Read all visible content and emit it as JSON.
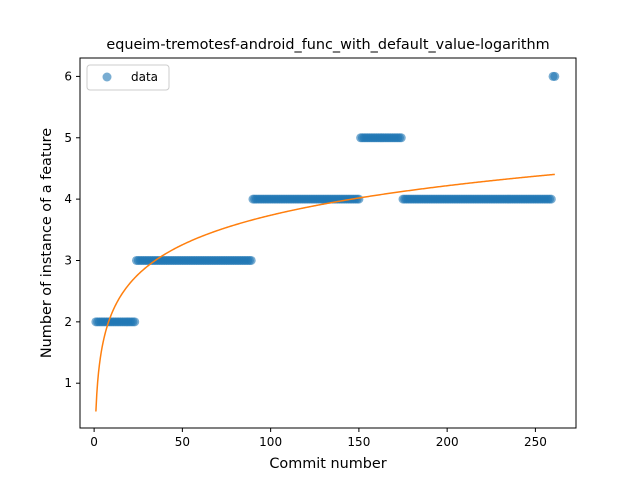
{
  "chart_data": {
    "type": "scatter",
    "title": "equeim-tremotesf-android_func_with_default_value-logarithm",
    "xlabel": "Commit number",
    "ylabel": "Number of instance of a feature",
    "xlim": [
      -8,
      273
    ],
    "ylim": [
      0.27,
      6.3
    ],
    "xticks": [
      0,
      50,
      100,
      150,
      200,
      250
    ],
    "yticks": [
      1,
      2,
      3,
      4,
      5,
      6
    ],
    "legend": {
      "position": "top-left",
      "entries": [
        "data"
      ]
    },
    "grid": false,
    "series": [
      {
        "name": "data",
        "kind": "points",
        "color": "#1f77b4",
        "segments": [
          {
            "x_start": 1,
            "x_end": 23,
            "y": 2
          },
          {
            "x_start": 24,
            "x_end": 89,
            "y": 3
          },
          {
            "x_start": 90,
            "x_end": 150,
            "y": 4
          },
          {
            "x_start": 151,
            "x_end": 174,
            "y": 5
          },
          {
            "x_start": 175,
            "x_end": 259,
            "y": 4
          },
          {
            "x_start": 260,
            "x_end": 261,
            "y": 6
          }
        ]
      },
      {
        "kind": "fit-line",
        "color": "#ff7f0e",
        "model": "logarithmic",
        "a": 0.6945,
        "b": 0.5388,
        "x_range": [
          1,
          261
        ]
      }
    ]
  }
}
